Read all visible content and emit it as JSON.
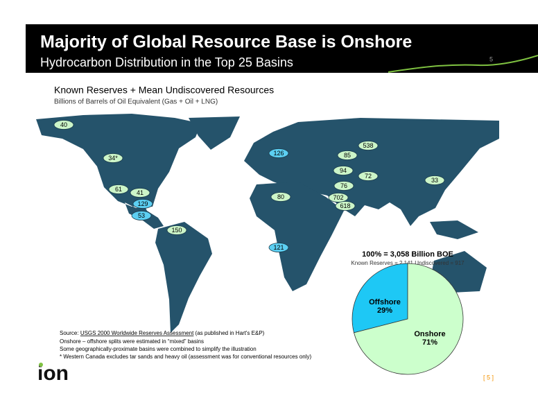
{
  "header": {
    "title": "Majority of Global Resource Base is Onshore",
    "subtitle": "Hydrocarbon Distribution in the Top 25 Basins",
    "page_number": "5"
  },
  "map": {
    "title": "Known Reserves + Mean Undiscovered Resources",
    "subtitle": "Billions of Barrels of Oil Equivalent (Gas + Oil + LNG)",
    "onshore_color": "#ccf5c8",
    "offshore_color": "#5ccff2",
    "basins": [
      {
        "label": "40",
        "offshore": false
      },
      {
        "label": "34*",
        "offshore": false
      },
      {
        "label": "61",
        "offshore": false
      },
      {
        "label": "41",
        "offshore": false
      },
      {
        "label": "129",
        "offshore": true
      },
      {
        "label": "53",
        "offshore": true
      },
      {
        "label": "150",
        "offshore": false
      },
      {
        "label": "126",
        "offshore": true
      },
      {
        "label": "85",
        "offshore": false
      },
      {
        "label": "538",
        "offshore": false
      },
      {
        "label": "94",
        "offshore": false
      },
      {
        "label": "72",
        "offshore": false
      },
      {
        "label": "33",
        "offshore": false
      },
      {
        "label": "76",
        "offshore": false
      },
      {
        "label": "80",
        "offshore": false
      },
      {
        "label": "702",
        "offshore": false
      },
      {
        "label": "618",
        "offshore": false
      },
      {
        "label": "121",
        "offshore": true
      }
    ]
  },
  "chart_data": {
    "type": "pie",
    "title": "100% = 3,058 Billion BOE",
    "subtitle": "Known Reserves  = 2,141  Undiscovered = 917",
    "categories": [
      "Offshore",
      "Onshore"
    ],
    "values": [
      29,
      71
    ],
    "value_labels": [
      "29%",
      "71%"
    ],
    "colors": [
      "#1ec8f5",
      "#ccffcc"
    ]
  },
  "notes": {
    "source_prefix": "Source:",
    "source_link": "USGS 2000 Worldwide Reserves Assessment",
    "source_suffix": "(as published in Hart's E&P)",
    "lines": [
      "Onshore – offshore splits were estimated in “mixed” basins",
      "Some geographically-proximate basins were combined to simplify the illustration",
      "* Western Canada excludes tar sands and heavy oil (assessment was for conventional resources only)"
    ]
  },
  "footer": {
    "logo": "ion",
    "page": "[ 5 ]"
  }
}
